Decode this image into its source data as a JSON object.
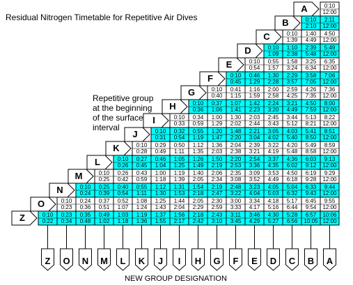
{
  "title": "Residual Nitrogen Timetable for Repetitive Air Dives",
  "note": "Repetitive group at the beginning of the surface interval",
  "footer": "NEW GROUP DESIGNATION",
  "colors": {
    "cyan": "#00ffff",
    "white": "#ffffff",
    "line": "#000000"
  },
  "columns": [
    "Z",
    "O",
    "N",
    "M",
    "L",
    "K",
    "J",
    "I",
    "H",
    "G",
    "F",
    "E",
    "D",
    "C",
    "B",
    "A"
  ],
  "rows": [
    {
      "group": "A",
      "cyan": false,
      "cells": [
        [
          "0:10",
          "12:00"
        ]
      ]
    },
    {
      "group": "B",
      "cyan": true,
      "cells": [
        [
          "0:10",
          "2:10"
        ],
        [
          "2:11",
          "12:00"
        ]
      ]
    },
    {
      "group": "C",
      "cyan": false,
      "cells": [
        [
          "0:10",
          "1:39"
        ],
        [
          "1:40",
          "4:49"
        ],
        [
          "4:50",
          "12:00"
        ]
      ]
    },
    {
      "group": "D",
      "cyan": true,
      "cells": [
        [
          "0:10",
          "1:09"
        ],
        [
          "1:10",
          "2:38"
        ],
        [
          "2:39",
          "5:48"
        ],
        [
          "5:49",
          "12:00"
        ]
      ]
    },
    {
      "group": "E",
      "cyan": false,
      "cells": [
        [
          "0:10",
          "0:54"
        ],
        [
          "0:55",
          "1:57"
        ],
        [
          "1:58",
          "3:24"
        ],
        [
          "3:25",
          "6:34"
        ],
        [
          "6:35",
          "12:00"
        ]
      ]
    },
    {
      "group": "F",
      "cyan": true,
      "cells": [
        [
          "0:10",
          "0:45"
        ],
        [
          "0:46",
          "1:29"
        ],
        [
          "1:30",
          "2:28"
        ],
        [
          "2:29",
          "3:57"
        ],
        [
          "3:58",
          "7:05"
        ],
        [
          "7:06",
          "12:00"
        ]
      ]
    },
    {
      "group": "G",
      "cyan": false,
      "cells": [
        [
          "0:10",
          "0:40"
        ],
        [
          "0:41",
          "1:15"
        ],
        [
          "1:16",
          "1:59"
        ],
        [
          "2:00",
          "2:58"
        ],
        [
          "2:59",
          "4:25"
        ],
        [
          "4:26",
          "7:35"
        ],
        [
          "7:36",
          "12:00"
        ]
      ]
    },
    {
      "group": "H",
      "cyan": true,
      "cells": [
        [
          "0:10",
          "0:36"
        ],
        [
          "0:37",
          "1:06"
        ],
        [
          "1:07",
          "1:41"
        ],
        [
          "1:42",
          "2:23"
        ],
        [
          "2:24",
          "3:20"
        ],
        [
          "3:21",
          "4:49"
        ],
        [
          "4:50",
          "7:59"
        ],
        [
          "8:00",
          "12:00"
        ]
      ]
    },
    {
      "group": "I",
      "cyan": false,
      "cells": [
        [
          "0:10",
          "0:33"
        ],
        [
          "0:34",
          "0:59"
        ],
        [
          "1:00",
          "1:29"
        ],
        [
          "1:30",
          "2:02"
        ],
        [
          "2:03",
          "2:44"
        ],
        [
          "2:45",
          "3:43"
        ],
        [
          "3:44",
          "5:12"
        ],
        [
          "5:13",
          "8:21"
        ],
        [
          "8:22",
          "12:00"
        ]
      ]
    },
    {
      "group": "J",
      "cyan": true,
      "cells": [
        [
          "0:10",
          "0:31"
        ],
        [
          "0:32",
          "0:54"
        ],
        [
          "0:55",
          "1:19"
        ],
        [
          "1:20",
          "1:47"
        ],
        [
          "1:48",
          "2:20"
        ],
        [
          "2:21",
          "3:04"
        ],
        [
          "3:05",
          "4:02"
        ],
        [
          "4:03",
          "5:40"
        ],
        [
          "5:41",
          "8:50"
        ],
        [
          "8:51",
          "12:00"
        ]
      ]
    },
    {
      "group": "K",
      "cyan": false,
      "cells": [
        [
          "0:10",
          "0:28"
        ],
        [
          "0:29",
          "0:49"
        ],
        [
          "0:50",
          "1:11"
        ],
        [
          "1:12",
          "1:35"
        ],
        [
          "1:36",
          "2:03"
        ],
        [
          "2:04",
          "2:38"
        ],
        [
          "2:39",
          "3:21"
        ],
        [
          "3:22",
          "4:19"
        ],
        [
          "4:20",
          "5:48"
        ],
        [
          "5:49",
          "8:58"
        ],
        [
          "8:59",
          "12:00"
        ]
      ]
    },
    {
      "group": "L",
      "cyan": true,
      "cells": [
        [
          "0:10",
          "0:26"
        ],
        [
          "0:27",
          "0:45"
        ],
        [
          "0:46",
          "1:04"
        ],
        [
          "1:05",
          "1:25"
        ],
        [
          "1:26",
          "1:49"
        ],
        [
          "1:50",
          "2:19"
        ],
        [
          "2:20",
          "2:53"
        ],
        [
          "2:54",
          "3:36"
        ],
        [
          "3:37",
          "4:35"
        ],
        [
          "4:36",
          "6:02"
        ],
        [
          "6:03",
          "9:12"
        ],
        [
          "9:13",
          "12:00"
        ]
      ]
    },
    {
      "group": "M",
      "cyan": false,
      "cells": [
        [
          "0:10",
          "0:25"
        ],
        [
          "0:26",
          "0:42"
        ],
        [
          "0:43",
          "0:59"
        ],
        [
          "1:00",
          "1:18"
        ],
        [
          "1:19",
          "1:39"
        ],
        [
          "1:40",
          "2:05"
        ],
        [
          "2:06",
          "2:34"
        ],
        [
          "2:35",
          "3:08"
        ],
        [
          "3:09",
          "3:52"
        ],
        [
          "3:53",
          "4:49"
        ],
        [
          "4:50",
          "6:18"
        ],
        [
          "6:19",
          "9:28"
        ],
        [
          "9:29",
          "12:00"
        ]
      ]
    },
    {
      "group": "N",
      "cyan": true,
      "cells": [
        [
          "0:10",
          "0:24"
        ],
        [
          "0:25",
          "0:39"
        ],
        [
          "0:40",
          "0:54"
        ],
        [
          "0:55",
          "1:11"
        ],
        [
          "1:12",
          "1:30"
        ],
        [
          "1:31",
          "1:53"
        ],
        [
          "1:54",
          "2:18"
        ],
        [
          "2:19",
          "2:47"
        ],
        [
          "2:48",
          "3:22"
        ],
        [
          "3:23",
          "4:04"
        ],
        [
          "4:05",
          "5:03"
        ],
        [
          "5:04",
          "6:32"
        ],
        [
          "6:33",
          "9:43"
        ],
        [
          "9:44",
          "12:00"
        ]
      ]
    },
    {
      "group": "O",
      "cyan": false,
      "cells": [
        [
          "0:10",
          "0:23"
        ],
        [
          "0:24",
          "0:36"
        ],
        [
          "0:37",
          "0:51"
        ],
        [
          "0:52",
          "1:07"
        ],
        [
          "1:08",
          "1:24"
        ],
        [
          "1:25",
          "1:43"
        ],
        [
          "1:44",
          "2:04"
        ],
        [
          "2:05",
          "2:29"
        ],
        [
          "2:30",
          "2:59"
        ],
        [
          "3:00",
          "3:33"
        ],
        [
          "3:34",
          "4:17"
        ],
        [
          "4:18",
          "5:16"
        ],
        [
          "5:17",
          "6:44"
        ],
        [
          "6:45",
          "9:54"
        ],
        [
          "9:55",
          "12:00"
        ]
      ]
    },
    {
      "group": "Z",
      "cyan": true,
      "cells": [
        [
          "0:10",
          "0:22"
        ],
        [
          "0:23",
          "0:34"
        ],
        [
          "0:35",
          "0:48"
        ],
        [
          "0:49",
          "1:02"
        ],
        [
          "1:03",
          "1:18"
        ],
        [
          "1:19",
          "1:36"
        ],
        [
          "1:37",
          "1:55"
        ],
        [
          "1:56",
          "2:17"
        ],
        [
          "2:18",
          "2:42"
        ],
        [
          "2:43",
          "3:10"
        ],
        [
          "3:11",
          "3:45"
        ],
        [
          "3:46",
          "4:29"
        ],
        [
          "4:30",
          "5:27"
        ],
        [
          "5:28",
          "6:56"
        ],
        [
          "6:57",
          "10:05"
        ],
        [
          "10:06",
          "12:00"
        ]
      ]
    }
  ]
}
